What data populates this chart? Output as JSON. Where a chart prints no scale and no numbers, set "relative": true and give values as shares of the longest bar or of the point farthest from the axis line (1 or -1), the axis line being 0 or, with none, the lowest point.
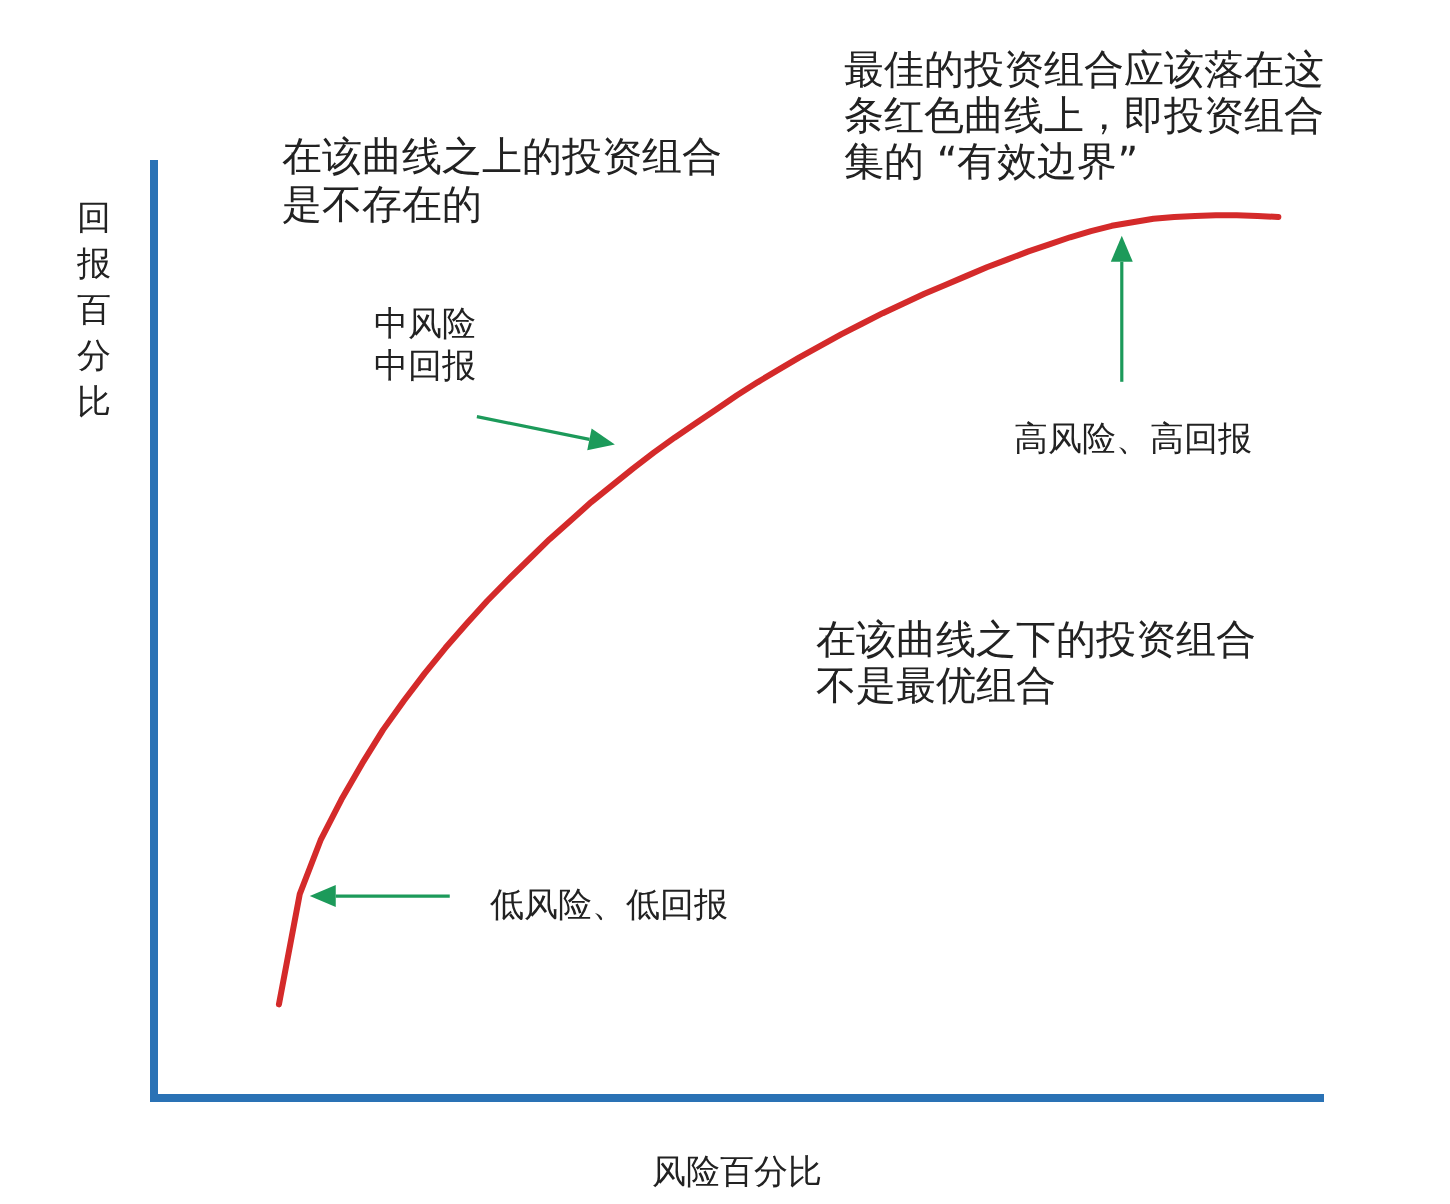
{
  "chart_data": {
    "type": "line",
    "relative": true,
    "xlabel": "风险百分比",
    "ylabel": "回报百分比",
    "annotations": [
      "在该曲线之上的投资组合是不存在的",
      "最佳的投资组合应该落在这条红色曲线上，即投资组合集的 “有效边界”",
      "中风险中回报",
      "高风险、高回报",
      "在该曲线之下的投资组合不是最优组合",
      "低风险、低回报"
    ],
    "categories": [
      null,
      null,
      null,
      null,
      null,
      null,
      null,
      null,
      null,
      null,
      null,
      null,
      null,
      null,
      null,
      null,
      null,
      null,
      null,
      null,
      null,
      null,
      null,
      null,
      null,
      null,
      null,
      null,
      null,
      null,
      null,
      null,
      null,
      null,
      null,
      null,
      null,
      null,
      null,
      null,
      null,
      null,
      null,
      null,
      null,
      null,
      null,
      null,
      null,
      null,
      null,
      null,
      null,
      null,
      null,
      null,
      null
    ],
    "values": [
      null,
      null,
      null,
      null,
      null,
      null,
      0.106,
      0.231,
      0.292,
      0.338,
      0.379,
      0.417,
      0.45,
      0.481,
      0.51,
      0.537,
      0.563,
      0.587,
      0.61,
      0.633,
      0.654,
      0.675,
      0.694,
      0.713,
      0.731,
      0.748,
      0.764,
      0.78,
      0.796,
      0.811,
      0.825,
      0.839,
      0.852,
      0.865,
      0.877,
      0.889,
      0.9,
      0.911,
      0.921,
      0.931,
      0.941,
      0.95,
      0.959,
      0.967,
      0.975,
      0.982,
      0.988,
      0.992,
      0.996,
      0.998,
      0.999,
      1,
      1,
      0.999,
      0.998,
      null,
      null
    ],
    "color": "#d42a2a"
  }
}
